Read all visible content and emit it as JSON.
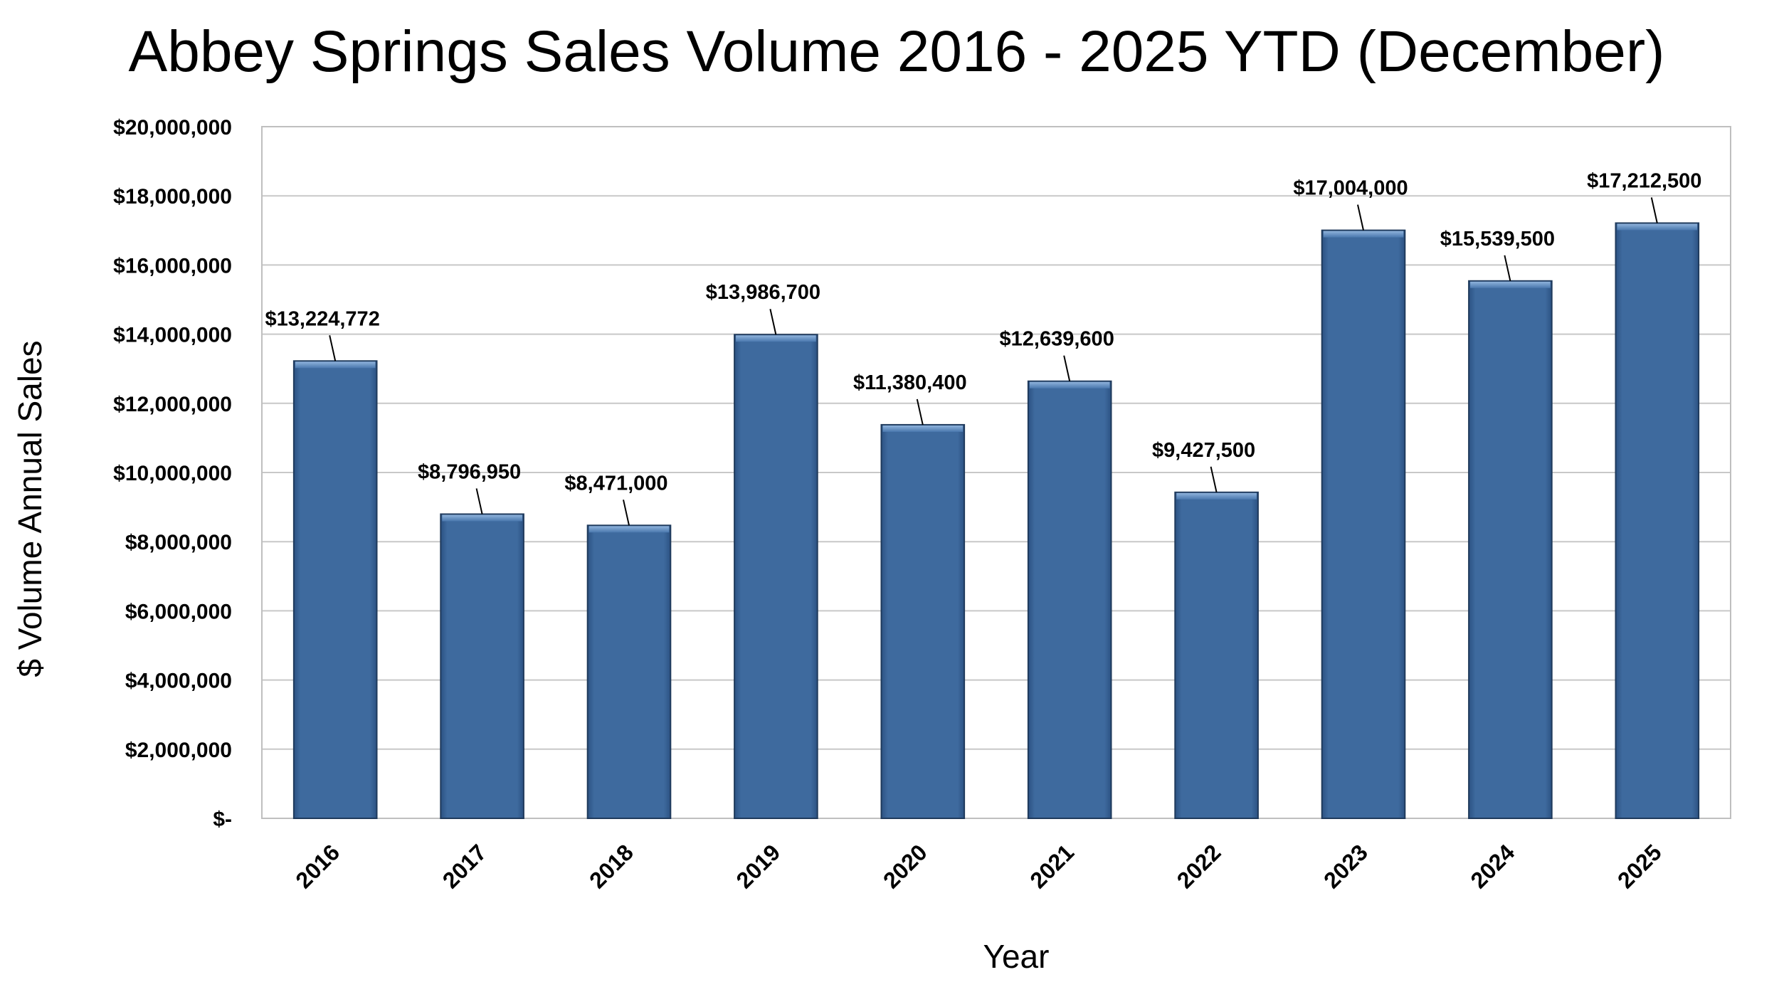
{
  "chart_data": {
    "type": "bar",
    "title": "Abbey Springs Sales Volume 2016 - 2025 YTD (December)",
    "xlabel": "Year",
    "ylabel": "$ Volume Annual Sales",
    "categories": [
      "2016",
      "2017",
      "2018",
      "2019",
      "2020",
      "2021",
      "2022",
      "2023",
      "2024",
      "2025"
    ],
    "values": [
      13224772,
      8796950,
      8471000,
      13986700,
      11380400,
      12639600,
      9427500,
      17004000,
      15539500,
      17212500
    ],
    "data_labels": [
      "$13,224,772",
      "$8,796,950",
      "$8,471,000",
      "$13,986,700",
      "$11,380,400",
      "$12,639,600",
      "$9,427,500",
      "$17,004,000",
      "$15,539,500",
      "$17,212,500"
    ],
    "ylim": [
      0,
      20000000
    ],
    "yticks": [
      0,
      2000000,
      4000000,
      6000000,
      8000000,
      10000000,
      12000000,
      14000000,
      16000000,
      18000000,
      20000000
    ],
    "ytick_labels": [
      "$-",
      "$2,000,000",
      "$4,000,000",
      "$6,000,000",
      "$8,000,000",
      "$10,000,000",
      "$12,000,000",
      "$14,000,000",
      "$16,000,000",
      "$18,000,000",
      "$20,000,000"
    ],
    "grid": true,
    "legend": "none",
    "bar_color": "#3e6a9e",
    "bar_edge_color": "#1f3a5c",
    "bar_highlight_color": "#6f98c8"
  }
}
